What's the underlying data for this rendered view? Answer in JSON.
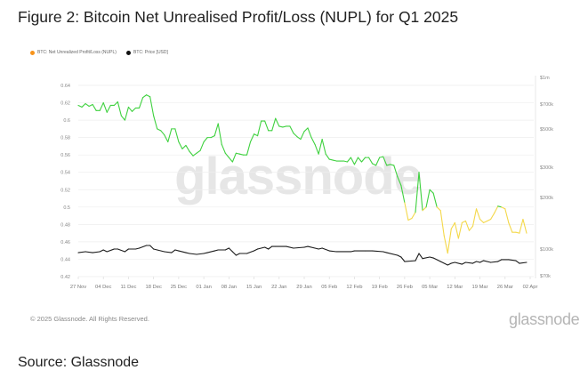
{
  "title": "Figure 2: Bitcoin Net Unrealised Profit/Loss (NUPL) for Q1 2025",
  "source": "Source: Glassnode",
  "footer": {
    "copyright": "© 2025 Glassnode. All Rights Reserved.",
    "logo": "glassnode"
  },
  "watermark": "glassnode",
  "colors": {
    "nupl_above_0_5": "#3fd13f",
    "nupl_below_0_5": "#f4d84a",
    "price": "#1a1a1a",
    "legend_nupl": "#f7931a",
    "legend_price": "#111111",
    "grid": "#eeeeee"
  },
  "chart_data": {
    "type": "line",
    "legend": {
      "placement": "top-left",
      "items": [
        {
          "label": "BTC: Net Unrealized Profit/Loss (NUPL)",
          "color": "#f7931a"
        },
        {
          "label": "BTC: Price [USD]",
          "color": "#111111"
        }
      ]
    },
    "x_ticks": [
      {
        "label": "27 Nov",
        "date": "2024-11-27"
      },
      {
        "label": "04 Dec",
        "date": "2024-12-04"
      },
      {
        "label": "11 Dec",
        "date": "2024-12-11"
      },
      {
        "label": "18 Dec",
        "date": "2024-12-18"
      },
      {
        "label": "25 Dec",
        "date": "2024-12-25"
      },
      {
        "label": "01 Jan",
        "date": "2025-01-01"
      },
      {
        "label": "08 Jan",
        "date": "2025-01-08"
      },
      {
        "label": "15 Jan",
        "date": "2025-01-15"
      },
      {
        "label": "22 Jan",
        "date": "2025-01-22"
      },
      {
        "label": "29 Jan",
        "date": "2025-01-29"
      },
      {
        "label": "05 Feb",
        "date": "2025-02-05"
      },
      {
        "label": "12 Feb",
        "date": "2025-02-12"
      },
      {
        "label": "19 Feb",
        "date": "2025-02-19"
      },
      {
        "label": "26 Feb",
        "date": "2025-02-26"
      },
      {
        "label": "05 Mar",
        "date": "2025-03-05"
      },
      {
        "label": "12 Mar",
        "date": "2025-03-12"
      },
      {
        "label": "19 Mar",
        "date": "2025-03-19"
      },
      {
        "label": "26 Mar",
        "date": "2025-03-26"
      },
      {
        "label": "02 Apr",
        "date": "2025-04-02"
      }
    ],
    "y_left": {
      "scale": "linear",
      "range": [
        0.42,
        0.64
      ],
      "ticks": [
        "0.64",
        "0.62",
        "0.6",
        "0.58",
        "0.56",
        "0.54",
        "0.52",
        "0.5",
        "0.48",
        "0.46",
        "0.44",
        "0.42"
      ],
      "grid": true
    },
    "y_right": {
      "scale": "log",
      "range": [
        70000,
        1000000
      ],
      "ticks": [
        {
          "label": "$1m",
          "value": 1000000
        },
        {
          "label": "$700k",
          "value": 700000
        },
        {
          "label": "$500k",
          "value": 500000
        },
        {
          "label": "$300k",
          "value": 300000
        },
        {
          "label": "$200k",
          "value": 200000
        },
        {
          "label": "$100k",
          "value": 100000
        },
        {
          "label": "$70k",
          "value": 70000
        }
      ]
    },
    "nupl_color_threshold": 0.5,
    "series": [
      {
        "name": "BTC: Net Unrealized Profit/Loss (NUPL)",
        "axis": "left",
        "points": [
          [
            "2024-11-27",
            0.617
          ],
          [
            "2024-11-28",
            0.615
          ],
          [
            "2024-11-29",
            0.619
          ],
          [
            "2024-11-30",
            0.616
          ],
          [
            "2024-12-01",
            0.618
          ],
          [
            "2024-12-02",
            0.611
          ],
          [
            "2024-12-03",
            0.611
          ],
          [
            "2024-12-04",
            0.62
          ],
          [
            "2024-12-05",
            0.609
          ],
          [
            "2024-12-06",
            0.617
          ],
          [
            "2024-12-07",
            0.617
          ],
          [
            "2024-12-08",
            0.621
          ],
          [
            "2024-12-09",
            0.605
          ],
          [
            "2024-12-10",
            0.6
          ],
          [
            "2024-12-11",
            0.615
          ],
          [
            "2024-12-12",
            0.61
          ],
          [
            "2024-12-13",
            0.614
          ],
          [
            "2024-12-14",
            0.614
          ],
          [
            "2024-12-15",
            0.626
          ],
          [
            "2024-12-16",
            0.629
          ],
          [
            "2024-12-17",
            0.627
          ],
          [
            "2024-12-18",
            0.605
          ],
          [
            "2024-12-19",
            0.59
          ],
          [
            "2024-12-20",
            0.588
          ],
          [
            "2024-12-21",
            0.583
          ],
          [
            "2024-12-22",
            0.575
          ],
          [
            "2024-12-23",
            0.59
          ],
          [
            "2024-12-24",
            0.59
          ],
          [
            "2024-12-25",
            0.575
          ],
          [
            "2024-12-26",
            0.567
          ],
          [
            "2024-12-27",
            0.571
          ],
          [
            "2024-12-28",
            0.564
          ],
          [
            "2024-12-29",
            0.559
          ],
          [
            "2024-12-30",
            0.562
          ],
          [
            "2024-12-31",
            0.565
          ],
          [
            "2025-01-01",
            0.575
          ],
          [
            "2025-01-02",
            0.58
          ],
          [
            "2025-01-03",
            0.58
          ],
          [
            "2025-01-04",
            0.582
          ],
          [
            "2025-01-05",
            0.596
          ],
          [
            "2025-01-06",
            0.572
          ],
          [
            "2025-01-07",
            0.562
          ],
          [
            "2025-01-08",
            0.557
          ],
          [
            "2025-01-09",
            0.552
          ],
          [
            "2025-01-10",
            0.562
          ],
          [
            "2025-01-11",
            0.561
          ],
          [
            "2025-01-12",
            0.56
          ],
          [
            "2025-01-13",
            0.56
          ],
          [
            "2025-01-14",
            0.575
          ],
          [
            "2025-01-15",
            0.584
          ],
          [
            "2025-01-16",
            0.582
          ],
          [
            "2025-01-17",
            0.599
          ],
          [
            "2025-01-18",
            0.599
          ],
          [
            "2025-01-19",
            0.588
          ],
          [
            "2025-01-20",
            0.588
          ],
          [
            "2025-01-21",
            0.602
          ],
          [
            "2025-01-22",
            0.593
          ],
          [
            "2025-01-23",
            0.592
          ],
          [
            "2025-01-24",
            0.593
          ],
          [
            "2025-01-25",
            0.593
          ],
          [
            "2025-01-26",
            0.585
          ],
          [
            "2025-01-27",
            0.581
          ],
          [
            "2025-01-28",
            0.578
          ],
          [
            "2025-01-29",
            0.587
          ],
          [
            "2025-01-30",
            0.591
          ],
          [
            "2025-01-31",
            0.58
          ],
          [
            "2025-02-01",
            0.572
          ],
          [
            "2025-02-02",
            0.561
          ],
          [
            "2025-02-03",
            0.578
          ],
          [
            "2025-02-04",
            0.561
          ],
          [
            "2025-02-05",
            0.555
          ],
          [
            "2025-02-06",
            0.554
          ],
          [
            "2025-02-07",
            0.553
          ],
          [
            "2025-02-08",
            0.553
          ],
          [
            "2025-02-09",
            0.553
          ],
          [
            "2025-02-10",
            0.552
          ],
          [
            "2025-02-11",
            0.557
          ],
          [
            "2025-02-12",
            0.549
          ],
          [
            "2025-02-13",
            0.557
          ],
          [
            "2025-02-14",
            0.552
          ],
          [
            "2025-02-15",
            0.557
          ],
          [
            "2025-02-16",
            0.557
          ],
          [
            "2025-02-17",
            0.55
          ],
          [
            "2025-02-18",
            0.548
          ],
          [
            "2025-02-19",
            0.557
          ],
          [
            "2025-02-20",
            0.558
          ],
          [
            "2025-02-21",
            0.548
          ],
          [
            "2025-02-22",
            0.549
          ],
          [
            "2025-02-23",
            0.548
          ],
          [
            "2025-02-24",
            0.535
          ],
          [
            "2025-02-25",
            0.525
          ],
          [
            "2025-02-26",
            0.505
          ],
          [
            "2025-02-27",
            0.485
          ],
          [
            "2025-02-28",
            0.487
          ],
          [
            "2025-03-01",
            0.494
          ],
          [
            "2025-03-02",
            0.54
          ],
          [
            "2025-03-03",
            0.496
          ],
          [
            "2025-03-04",
            0.5
          ],
          [
            "2025-03-05",
            0.52
          ],
          [
            "2025-03-06",
            0.516
          ],
          [
            "2025-03-07",
            0.5
          ],
          [
            "2025-03-08",
            0.496
          ],
          [
            "2025-03-09",
            0.467
          ],
          [
            "2025-03-10",
            0.447
          ],
          [
            "2025-03-11",
            0.475
          ],
          [
            "2025-03-12",
            0.482
          ],
          [
            "2025-03-13",
            0.464
          ],
          [
            "2025-03-14",
            0.482
          ],
          [
            "2025-03-15",
            0.484
          ],
          [
            "2025-03-16",
            0.473
          ],
          [
            "2025-03-17",
            0.478
          ],
          [
            "2025-03-18",
            0.498
          ],
          [
            "2025-03-19",
            0.486
          ],
          [
            "2025-03-20",
            0.482
          ],
          [
            "2025-03-21",
            0.484
          ],
          [
            "2025-03-22",
            0.486
          ],
          [
            "2025-03-23",
            0.493
          ],
          [
            "2025-03-24",
            0.501
          ],
          [
            "2025-03-25",
            0.5
          ],
          [
            "2025-03-26",
            0.498
          ],
          [
            "2025-03-27",
            0.482
          ],
          [
            "2025-03-28",
            0.471
          ],
          [
            "2025-03-29",
            0.471
          ],
          [
            "2025-03-30",
            0.47
          ],
          [
            "2025-03-31",
            0.486
          ],
          [
            "2025-04-01",
            0.47
          ]
        ]
      },
      {
        "name": "BTC: Price [USD]",
        "axis": "right",
        "points": [
          [
            "2024-11-27",
            95300
          ],
          [
            "2024-11-29",
            96500
          ],
          [
            "2024-12-01",
            95300
          ],
          [
            "2024-12-03",
            96500
          ],
          [
            "2024-12-04",
            98800
          ],
          [
            "2024-12-05",
            96500
          ],
          [
            "2024-12-07",
            100000
          ],
          [
            "2024-12-08",
            100000
          ],
          [
            "2024-12-10",
            96500
          ],
          [
            "2024-12-11",
            100000
          ],
          [
            "2024-12-13",
            100000
          ],
          [
            "2024-12-14",
            101200
          ],
          [
            "2024-12-16",
            104900
          ],
          [
            "2024-12-17",
            104900
          ],
          [
            "2024-12-18",
            100000
          ],
          [
            "2024-12-19",
            98800
          ],
          [
            "2024-12-21",
            96500
          ],
          [
            "2024-12-23",
            95300
          ],
          [
            "2024-12-24",
            98800
          ],
          [
            "2024-12-25",
            97600
          ],
          [
            "2024-12-27",
            95300
          ],
          [
            "2024-12-28",
            94200
          ],
          [
            "2024-12-30",
            93100
          ],
          [
            "2025-01-01",
            94200
          ],
          [
            "2025-01-02",
            95300
          ],
          [
            "2025-01-04",
            97600
          ],
          [
            "2025-01-05",
            98800
          ],
          [
            "2025-01-07",
            98800
          ],
          [
            "2025-01-08",
            101200
          ],
          [
            "2025-01-09",
            96500
          ],
          [
            "2025-01-10",
            92000
          ],
          [
            "2025-01-11",
            94200
          ],
          [
            "2025-01-13",
            94200
          ],
          [
            "2025-01-15",
            97600
          ],
          [
            "2025-01-16",
            100000
          ],
          [
            "2025-01-18",
            102400
          ],
          [
            "2025-01-19",
            100000
          ],
          [
            "2025-01-20",
            103600
          ],
          [
            "2025-01-21",
            103600
          ],
          [
            "2025-01-24",
            103600
          ],
          [
            "2025-01-26",
            101200
          ],
          [
            "2025-01-29",
            102400
          ],
          [
            "2025-01-30",
            103600
          ],
          [
            "2025-02-01",
            101200
          ],
          [
            "2025-02-02",
            100000
          ],
          [
            "2025-02-03",
            101200
          ],
          [
            "2025-02-05",
            97600
          ],
          [
            "2025-02-07",
            96500
          ],
          [
            "2025-02-11",
            96500
          ],
          [
            "2025-02-12",
            97600
          ],
          [
            "2025-02-15",
            97600
          ],
          [
            "2025-02-17",
            97600
          ],
          [
            "2025-02-20",
            96500
          ],
          [
            "2025-02-21",
            95300
          ],
          [
            "2025-02-24",
            92000
          ],
          [
            "2025-02-25",
            89800
          ],
          [
            "2025-02-26",
            84600
          ],
          [
            "2025-03-01",
            85500
          ],
          [
            "2025-03-02",
            94200
          ],
          [
            "2025-03-03",
            88000
          ],
          [
            "2025-03-05",
            89800
          ],
          [
            "2025-03-06",
            88700
          ],
          [
            "2025-03-08",
            84600
          ],
          [
            "2025-03-10",
            80700
          ],
          [
            "2025-03-11",
            82600
          ],
          [
            "2025-03-12",
            83600
          ],
          [
            "2025-03-14",
            81600
          ],
          [
            "2025-03-15",
            83600
          ],
          [
            "2025-03-17",
            82600
          ],
          [
            "2025-03-18",
            84600
          ],
          [
            "2025-03-19",
            83600
          ],
          [
            "2025-03-20",
            85600
          ],
          [
            "2025-03-22",
            83600
          ],
          [
            "2025-03-24",
            84600
          ],
          [
            "2025-03-25",
            86700
          ],
          [
            "2025-03-27",
            86700
          ],
          [
            "2025-03-29",
            85600
          ],
          [
            "2025-03-30",
            82600
          ],
          [
            "2025-04-01",
            83600
          ]
        ]
      }
    ]
  }
}
